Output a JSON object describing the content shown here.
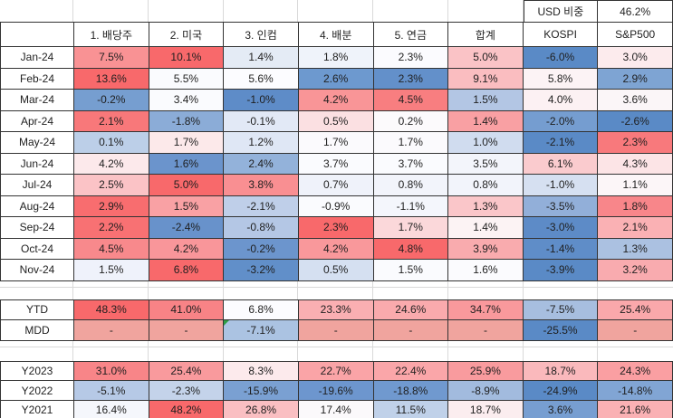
{
  "top": {
    "usd_label": "USD 비중",
    "usd_value": "46.2%"
  },
  "table": {
    "corner_label": "",
    "column_headers": [
      "1. 배당주",
      "2. 미국",
      "3. 인컴",
      "4. 배분",
      "5. 연금",
      "합계",
      "KOSPI",
      "S&P500"
    ],
    "sections": [
      {
        "name": "monthly",
        "rows": [
          {
            "label": "Jan-24",
            "cells": [
              {
                "text": "7.5%",
                "v": 7.5,
                "bg": "#F99294"
              },
              {
                "text": "10.1%",
                "v": 10.1,
                "bg": "#F8696B"
              },
              {
                "text": "1.4%",
                "v": 1.4,
                "bg": "#E4EBF5"
              },
              {
                "text": "1.8%",
                "v": 1.8,
                "bg": "#EFF3FA"
              },
              {
                "text": "2.3%",
                "v": 2.3,
                "bg": "#FBFBFE"
              },
              {
                "text": "5.0%",
                "v": 5.0,
                "bg": "#FAC3C6"
              },
              {
                "text": "-6.0%",
                "v": -6.0,
                "bg": "#5A8AC6"
              },
              {
                "text": "3.0%",
                "v": 3.0,
                "bg": "#FCEBED"
              }
            ]
          },
          {
            "label": "Feb-24",
            "cells": [
              {
                "text": "13.6%",
                "v": 13.6,
                "bg": "#F8696B"
              },
              {
                "text": "5.5%",
                "v": 5.5,
                "bg": "#FAFBFE"
              },
              {
                "text": "5.6%",
                "v": 5.6,
                "bg": "#FCFCFF"
              },
              {
                "text": "2.6%",
                "v": 2.6,
                "bg": "#6D99CF"
              },
              {
                "text": "2.3%",
                "v": 2.3,
                "bg": "#6390CA"
              },
              {
                "text": "9.1%",
                "v": 9.1,
                "bg": "#FABDC0"
              },
              {
                "text": "5.8%",
                "v": 5.8,
                "bg": "#FCF3F5"
              },
              {
                "text": "2.9%",
                "v": 2.9,
                "bg": "#7EA4D3"
              }
            ]
          },
          {
            "label": "Mar-24",
            "cells": [
              {
                "text": "-0.2%",
                "v": -0.2,
                "bg": "#769ED0"
              },
              {
                "text": "3.4%",
                "v": 3.4,
                "bg": "#FAFBFE"
              },
              {
                "text": "-1.0%",
                "v": -1.0,
                "bg": "#5E8CC8"
              },
              {
                "text": "4.2%",
                "v": 4.2,
                "bg": "#F99597"
              },
              {
                "text": "4.5%",
                "v": 4.5,
                "bg": "#F87E80"
              },
              {
                "text": "1.5%",
                "v": 1.5,
                "bg": "#B3C6E4"
              },
              {
                "text": "4.0%",
                "v": 4.0,
                "bg": "#FCF1F3"
              },
              {
                "text": "3.6%",
                "v": 3.6,
                "bg": "#FBF6F8"
              }
            ]
          },
          {
            "label": "Apr-24",
            "cells": [
              {
                "text": "2.1%",
                "v": 2.1,
                "bg": "#F8787A"
              },
              {
                "text": "-1.8%",
                "v": -1.8,
                "bg": "#8BACD7"
              },
              {
                "text": "-0.1%",
                "v": -0.1,
                "bg": "#E2E9F6"
              },
              {
                "text": "0.5%",
                "v": 0.5,
                "bg": "#FBE0E2"
              },
              {
                "text": "0.2%",
                "v": 0.2,
                "bg": "#FCFAFC"
              },
              {
                "text": "1.4%",
                "v": 1.4,
                "bg": "#F9A0A3"
              },
              {
                "text": "-2.0%",
                "v": -2.0,
                "bg": "#759DD0"
              },
              {
                "text": "-2.6%",
                "v": -2.6,
                "bg": "#5A8AC6"
              }
            ]
          },
          {
            "label": "May-24",
            "cells": [
              {
                "text": "0.1%",
                "v": 0.1,
                "bg": "#BCCFE8"
              },
              {
                "text": "1.7%",
                "v": 1.7,
                "bg": "#FCE9EA"
              },
              {
                "text": "1.2%",
                "v": 1.2,
                "bg": "#DFE7F5"
              },
              {
                "text": "1.7%",
                "v": 1.7,
                "bg": "#FBFAFD"
              },
              {
                "text": "1.7%",
                "v": 1.7,
                "bg": "#FBFAFD"
              },
              {
                "text": "1.0%",
                "v": 1.0,
                "bg": "#D0DCEF"
              },
              {
                "text": "-2.1%",
                "v": -2.1,
                "bg": "#5A8AC6"
              },
              {
                "text": "2.3%",
                "v": 2.3,
                "bg": "#F8797C"
              }
            ]
          },
          {
            "label": "Jun-24",
            "cells": [
              {
                "text": "4.2%",
                "v": 4.2,
                "bg": "#FCE9EB"
              },
              {
                "text": "1.6%",
                "v": 1.6,
                "bg": "#6B94CC"
              },
              {
                "text": "2.4%",
                "v": 2.4,
                "bg": "#93B2DA"
              },
              {
                "text": "3.7%",
                "v": 3.7,
                "bg": "#FAFBFE"
              },
              {
                "text": "3.7%",
                "v": 3.7,
                "bg": "#FAFBFE"
              },
              {
                "text": "3.5%",
                "v": 3.5,
                "bg": "#F3F5FB"
              },
              {
                "text": "6.1%",
                "v": 6.1,
                "bg": "#FACBCE"
              },
              {
                "text": "4.3%",
                "v": 4.3,
                "bg": "#FCE4E6"
              }
            ]
          },
          {
            "label": "Jul-24",
            "cells": [
              {
                "text": "2.5%",
                "v": 2.5,
                "bg": "#FBC3C6"
              },
              {
                "text": "5.0%",
                "v": 5.0,
                "bg": "#F8696B"
              },
              {
                "text": "3.8%",
                "v": 3.8,
                "bg": "#F98F92"
              },
              {
                "text": "0.7%",
                "v": 0.7,
                "bg": "#EFF2FA"
              },
              {
                "text": "0.8%",
                "v": 0.8,
                "bg": "#F2F4FB"
              },
              {
                "text": "0.8%",
                "v": 0.8,
                "bg": "#F2F4FB"
              },
              {
                "text": "-1.0%",
                "v": -1.0,
                "bg": "#D6E0F1"
              },
              {
                "text": "1.1%",
                "v": 1.1,
                "bg": "#FCF6F8"
              }
            ]
          },
          {
            "label": "Aug-24",
            "cells": [
              {
                "text": "2.9%",
                "v": 2.9,
                "bg": "#F86D6F"
              },
              {
                "text": "1.5%",
                "v": 1.5,
                "bg": "#F9A1A4"
              },
              {
                "text": "-2.1%",
                "v": -2.1,
                "bg": "#BFCFE9"
              },
              {
                "text": "-0.9%",
                "v": -0.9,
                "bg": "#FAFBFE"
              },
              {
                "text": "-1.1%",
                "v": -1.1,
                "bg": "#F4F6FC"
              },
              {
                "text": "1.3%",
                "v": 1.3,
                "bg": "#FAC6C9"
              },
              {
                "text": "-3.5%",
                "v": -3.5,
                "bg": "#92AFD9"
              },
              {
                "text": "1.8%",
                "v": 1.8,
                "bg": "#F8868A"
              }
            ]
          },
          {
            "label": "Sep-24",
            "cells": [
              {
                "text": "2.2%",
                "v": 2.2,
                "bg": "#F87173"
              },
              {
                "text": "-2.4%",
                "v": -2.4,
                "bg": "#6892CB"
              },
              {
                "text": "-0.8%",
                "v": -0.8,
                "bg": "#B4C7E5"
              },
              {
                "text": "2.3%",
                "v": 2.3,
                "bg": "#F8696B"
              },
              {
                "text": "1.7%",
                "v": 1.7,
                "bg": "#FBD8DA"
              },
              {
                "text": "1.4%",
                "v": 1.4,
                "bg": "#FCF3F4"
              },
              {
                "text": "-3.0%",
                "v": -3.0,
                "bg": "#5D8BC7"
              },
              {
                "text": "2.1%",
                "v": 2.1,
                "bg": "#FAB1B4"
              }
            ]
          },
          {
            "label": "Oct-24",
            "cells": [
              {
                "text": "4.5%",
                "v": 4.5,
                "bg": "#F8898C"
              },
              {
                "text": "4.2%",
                "v": 4.2,
                "bg": "#F9969A"
              },
              {
                "text": "-0.2%",
                "v": -0.2,
                "bg": "#6C95CD"
              },
              {
                "text": "4.2%",
                "v": 4.2,
                "bg": "#F9989B"
              },
              {
                "text": "4.8%",
                "v": 4.8,
                "bg": "#F8696B"
              },
              {
                "text": "3.9%",
                "v": 3.9,
                "bg": "#F9ABAE"
              },
              {
                "text": "-1.4%",
                "v": -1.4,
                "bg": "#5F8DC8"
              },
              {
                "text": "1.3%",
                "v": 1.3,
                "bg": "#ABC1E1"
              }
            ]
          },
          {
            "label": "Nov-24",
            "cells": [
              {
                "text": "1.5%",
                "v": 1.5,
                "bg": "#EFF2FB"
              },
              {
                "text": "6.8%",
                "v": 6.8,
                "bg": "#F8696B"
              },
              {
                "text": "-3.2%",
                "v": -3.2,
                "bg": "#618FC9"
              },
              {
                "text": "0.5%",
                "v": 0.5,
                "bg": "#D5E0F1"
              },
              {
                "text": "1.5%",
                "v": 1.5,
                "bg": "#FAFBFE"
              },
              {
                "text": "1.6%",
                "v": 1.6,
                "bg": "#FBFBFE"
              },
              {
                "text": "-3.9%",
                "v": -3.9,
                "bg": "#5A8AC6"
              },
              {
                "text": "3.2%",
                "v": 3.2,
                "bg": "#F9ABAF"
              }
            ]
          }
        ]
      },
      {
        "name": "summary",
        "rows": [
          {
            "label": "YTD",
            "cells": [
              {
                "text": "48.3%",
                "v": 48.3,
                "bg": "#F8696B"
              },
              {
                "text": "41.0%",
                "v": 41.0,
                "bg": "#F88386"
              },
              {
                "text": "6.8%",
                "v": 6.8,
                "bg": "#FCFCFF"
              },
              {
                "text": "23.3%",
                "v": 23.3,
                "bg": "#FAAFB2"
              },
              {
                "text": "24.6%",
                "v": 24.6,
                "bg": "#FAAAAD"
              },
              {
                "text": "34.7%",
                "v": 34.7,
                "bg": "#F9999C"
              },
              {
                "text": "-7.5%",
                "v": -7.5,
                "bg": "#A7BEDF"
              },
              {
                "text": "25.4%",
                "v": 25.4,
                "bg": "#FAA8AB"
              }
            ]
          },
          {
            "label": "MDD",
            "cells": [
              {
                "text": "-",
                "v": null,
                "bg": "#F0A49E"
              },
              {
                "text": "-",
                "v": null,
                "bg": "#F0A49E"
              },
              {
                "text": "-7.1%",
                "v": -7.1,
                "bg": "#ABC3E2",
                "marker": "green-corner"
              },
              {
                "text": "-",
                "v": null,
                "bg": "#F0A49E"
              },
              {
                "text": "-",
                "v": null,
                "bg": "#F0A49E"
              },
              {
                "text": "-",
                "v": null,
                "bg": "#F0A49E"
              },
              {
                "text": "-25.5%",
                "v": -25.5,
                "bg": "#5A8AC6"
              },
              {
                "text": "-",
                "v": null,
                "bg": "#F0A49E"
              }
            ]
          }
        ]
      },
      {
        "name": "yearly",
        "rows": [
          {
            "label": "Y2023",
            "cells": [
              {
                "text": "31.0%",
                "v": 31.0,
                "bg": "#F88588"
              },
              {
                "text": "25.4%",
                "v": 25.4,
                "bg": "#F99A9D"
              },
              {
                "text": "8.3%",
                "v": 8.3,
                "bg": "#FCEAEC"
              },
              {
                "text": "22.7%",
                "v": 22.7,
                "bg": "#FAA4A7"
              },
              {
                "text": "22.4%",
                "v": 22.4,
                "bg": "#FAA6A9"
              },
              {
                "text": "25.9%",
                "v": 25.9,
                "bg": "#F99B9E"
              },
              {
                "text": "18.7%",
                "v": 18.7,
                "bg": "#FAB9BC"
              },
              {
                "text": "24.3%",
                "v": 24.3,
                "bg": "#FA9FA2"
              }
            ]
          },
          {
            "label": "Y2022",
            "cells": [
              {
                "text": "-5.1%",
                "v": -5.1,
                "bg": "#B6C9E6"
              },
              {
                "text": "-2.3%",
                "v": -2.3,
                "bg": "#C4D3EA"
              },
              {
                "text": "-15.9%",
                "v": -15.9,
                "bg": "#7AA0D2"
              },
              {
                "text": "-19.6%",
                "v": -19.6,
                "bg": "#6D96CE"
              },
              {
                "text": "-18.8%",
                "v": -18.8,
                "bg": "#7099CF"
              },
              {
                "text": "-8.9%",
                "v": -8.9,
                "bg": "#A2BBDE"
              },
              {
                "text": "-24.9%",
                "v": -24.9,
                "bg": "#5A8AC6"
              },
              {
                "text": "-14.8%",
                "v": -14.8,
                "bg": "#81A5D4"
              }
            ]
          },
          {
            "label": "Y2021",
            "cells": [
              {
                "text": "16.4%",
                "v": 16.4,
                "bg": "#F5F7FC"
              },
              {
                "text": "48.2%",
                "v": 48.2,
                "bg": "#F8696B"
              },
              {
                "text": "26.8%",
                "v": 26.8,
                "bg": "#FABFC2"
              },
              {
                "text": "17.4%",
                "v": 17.4,
                "bg": "#FBF9FB"
              },
              {
                "text": "11.5%",
                "v": 11.5,
                "bg": "#C0D1E9"
              },
              {
                "text": "18.7%",
                "v": 18.7,
                "bg": "#FBEDEF"
              },
              {
                "text": "3.6%",
                "v": 3.6,
                "bg": "#779ED1"
              },
              {
                "text": "21.6%",
                "v": 21.6,
                "bg": "#FAB1B4"
              }
            ]
          }
        ]
      }
    ]
  },
  "colors": {
    "border": "#333333",
    "gridline": "#D9D9D9",
    "comment_marker_green": "#2F9E44",
    "heatmap_max_red": "#F8696B",
    "heatmap_mid_white": "#FCFCFF",
    "heatmap_min_blue": "#5A8AC6",
    "mdd_dash_fill": "#F0A49E"
  }
}
